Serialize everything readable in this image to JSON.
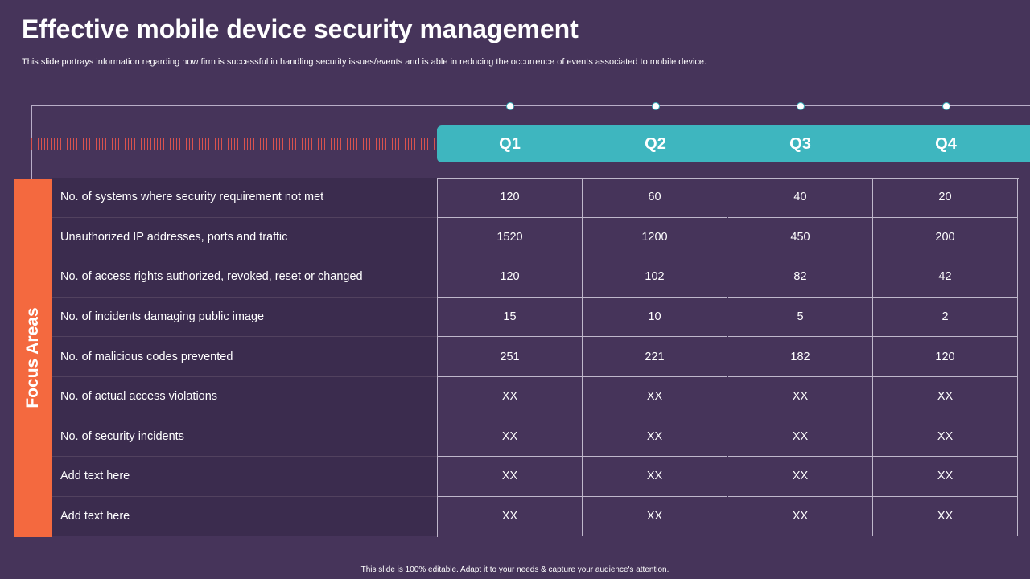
{
  "header": {
    "title": "Effective mobile device security management",
    "subtitle": "This slide portrays information regarding how firm is successful in handling security issues/events and is able in reducing the occurrence of events associated to mobile device."
  },
  "quarters": [
    "Q1",
    "Q2",
    "Q3",
    "Q4"
  ],
  "side_label": "Focus Areas",
  "rows": [
    {
      "label": "No. of systems where security requirement not met",
      "values": [
        "120",
        "60",
        "40",
        "20"
      ]
    },
    {
      "label": "Unauthorized IP addresses, ports and traffic",
      "values": [
        "1520",
        "1200",
        "450",
        "200"
      ]
    },
    {
      "label": "No. of access rights authorized, revoked, reset or changed",
      "values": [
        "120",
        "102",
        "82",
        "42"
      ]
    },
    {
      "label": "No. of incidents damaging public image",
      "values": [
        "15",
        "10",
        "5",
        "2"
      ]
    },
    {
      "label": "No. of malicious codes prevented",
      "values": [
        "251",
        "221",
        "182",
        "120"
      ]
    },
    {
      "label": "No. of actual access  violations",
      "values": [
        "XX",
        "XX",
        "XX",
        "XX"
      ]
    },
    {
      "label": "No. of security incidents",
      "values": [
        "XX",
        "XX",
        "XX",
        "XX"
      ]
    },
    {
      "label": "Add text here",
      "values": [
        "XX",
        "XX",
        "XX",
        "XX"
      ]
    },
    {
      "label": "Add text here",
      "values": [
        "XX",
        "XX",
        "XX",
        "XX"
      ]
    }
  ],
  "footer": "This slide is 100% editable.  Adapt it to your needs & capture your audience's attention.",
  "colors": {
    "background": "#46345a",
    "accent_teal": "#3eb6bf",
    "accent_orange": "#f4693f"
  }
}
